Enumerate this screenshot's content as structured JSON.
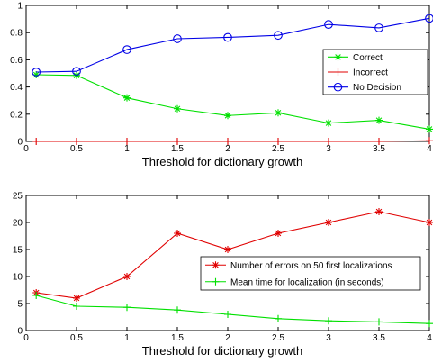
{
  "chart_data": [
    {
      "type": "line",
      "xlabel": "Threshold for dictionary growth",
      "ylabel": "",
      "xlim": [
        0,
        4
      ],
      "ylim": [
        0,
        1
      ],
      "xticks": [
        "0",
        "0.5",
        "1",
        "1.5",
        "2",
        "2.5",
        "3",
        "3.5",
        "4"
      ],
      "yticks": [
        "0",
        "0.2",
        "0.4",
        "0.6",
        "0.8",
        "1"
      ],
      "grid": false,
      "legend_position": "right",
      "x": [
        0.1,
        0.5,
        1,
        1.5,
        2,
        2.5,
        3,
        3.5,
        4
      ],
      "series": [
        {
          "name": "Correct",
          "color": "#00e000",
          "marker": "asterisk",
          "values": [
            0.49,
            0.485,
            0.32,
            0.24,
            0.19,
            0.21,
            0.135,
            0.155,
            0.09
          ]
        },
        {
          "name": "Incorrect",
          "color": "#e00000",
          "marker": "plus",
          "values": [
            0.0,
            0.0,
            0.0,
            0.0,
            0.0,
            0.0,
            0.0,
            0.0,
            0.005
          ]
        },
        {
          "name": "No Decision",
          "color": "#0000e6",
          "marker": "circle",
          "values": [
            0.51,
            0.515,
            0.675,
            0.755,
            0.765,
            0.78,
            0.86,
            0.835,
            0.905
          ]
        }
      ]
    },
    {
      "type": "line",
      "xlabel": "Threshold for dictionary growth",
      "ylabel": "",
      "xlim": [
        0,
        4
      ],
      "ylim": [
        0,
        25
      ],
      "xticks": [
        "0",
        "0.5",
        "1",
        "1.5",
        "2",
        "2.5",
        "3",
        "3.5",
        "4"
      ],
      "yticks": [
        "0",
        "5",
        "10",
        "15",
        "20",
        "25"
      ],
      "grid": false,
      "legend_position": "right",
      "x": [
        0.1,
        0.5,
        1,
        1.5,
        2,
        2.5,
        3,
        3.5,
        4
      ],
      "series": [
        {
          "name": "Number of errors on 50 first localizations",
          "color": "#e00000",
          "marker": "asterisk",
          "values": [
            7,
            6,
            10,
            18,
            15,
            18,
            20,
            22,
            20
          ]
        },
        {
          "name": "Mean time for localization (in seconds)",
          "color": "#00e000",
          "marker": "plus",
          "values": [
            6.5,
            4.5,
            4.3,
            3.8,
            3.0,
            2.2,
            1.8,
            1.6,
            1.3
          ]
        }
      ]
    }
  ]
}
